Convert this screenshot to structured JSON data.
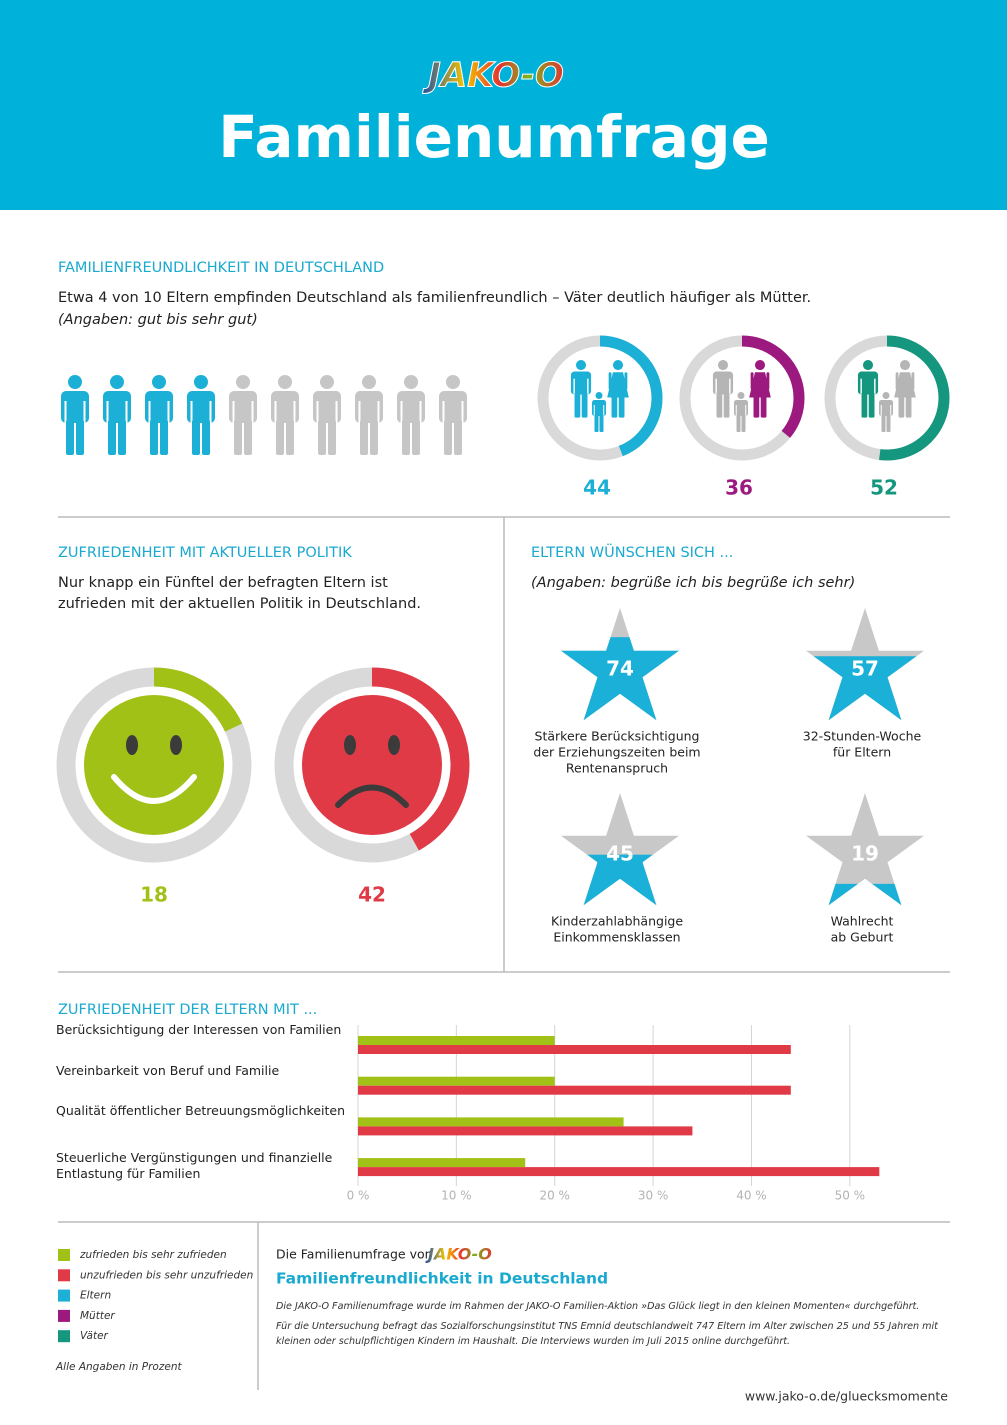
{
  "header": {
    "logo": "JAKO-O",
    "title": "Familienumfrage"
  },
  "chart_data": [
    {
      "type": "donut",
      "title": "FAMILIENFREUNDLICHKEIT IN DEUTSCHLAND",
      "subtitle": "Etwa 4 von 10 Eltern empfinden Deutschland als familienfreundlich – Väter deutlich häufiger als Mütter.",
      "note": "(Angaben: gut bis sehr gut)",
      "categories": [
        "Eltern",
        "Mütter",
        "Väter"
      ],
      "values": [
        44,
        36,
        52
      ],
      "colors": [
        "#1cb0d6",
        "#9c1a7f",
        "#14967f"
      ],
      "track_color": "#d9d9d9"
    },
    {
      "type": "pictogram",
      "value": 4,
      "count": 10,
      "color": "#1cb0d6",
      "track_color": "#c6c6c6"
    },
    {
      "type": "smiley",
      "title": "ZUFRIEDENHEIT MIT AKTUELLER POLITIK",
      "text": [
        "Nur knapp ein Fünftel der befragten Eltern ist",
        "zufrieden mit der aktuellen Politik in Deutschland."
      ],
      "values": [
        18,
        42
      ],
      "colors": [
        "#a2c116",
        "#e03a47"
      ],
      "track_color": "#d9d9d9"
    },
    {
      "type": "stars",
      "title": "ELTERN WÜNSCHEN SICH ...",
      "note": "(Angaben: begrüße ich bis begrüße ich sehr)",
      "values": [
        74,
        57,
        45,
        19
      ],
      "labels": [
        [
          "Stärkere Berücksichtigung",
          "der Erziehungszeiten beim",
          "Rentenanspruch"
        ],
        [
          "32-Stunden-Woche",
          "für Eltern"
        ],
        [
          "Kinderzahlabhängige",
          "Einkommensklassen"
        ],
        [
          "Wahlrecht",
          "ab Geburt"
        ]
      ],
      "color": "#1ab0d8",
      "track_color": "#c8c8c8"
    },
    {
      "type": "hbar",
      "title": "ZUFRIEDENHEIT DER ELTERN MIT ...",
      "categories": [
        "Berücksichtigung der Interessen von Familien",
        "Vereinbarkeit von Beruf und Familie",
        "Qualität öffentlicher Betreuungsmöglichkeiten",
        "Steuerliche Vergünstigungen und finanzielle Entlastung für Familien"
      ],
      "series": [
        {
          "name": "zufrieden bis sehr zufrieden",
          "color": "#a2c116",
          "values": [
            20,
            20,
            27,
            17
          ]
        },
        {
          "name": "unzufrieden bis sehr unzufrieden",
          "color": "#e03a47",
          "values": [
            44,
            44,
            34,
            53
          ]
        }
      ],
      "xlim": [
        0,
        55
      ],
      "xticks": [
        {
          "value": 0,
          "label": "0 %"
        },
        {
          "value": 10,
          "label": "10 %"
        },
        {
          "value": 20,
          "label": "20 %"
        },
        {
          "value": 30,
          "label": "30 %"
        },
        {
          "value": 40,
          "label": "40 %"
        },
        {
          "value": 50,
          "label": "50 %"
        }
      ],
      "grid": true
    }
  ],
  "footer": {
    "note": "Alle Angaben in Prozent",
    "intro": "Die Familienumfrage von",
    "logo": "JAKO-O",
    "heading": "Familienfreundlichkeit in Deutschland",
    "paragraphs": [
      "Die JAKO-O Familienumfrage wurde im Rahmen der JAKO-O Familien-Aktion »Das Glück liegt in den kleinen Momenten« durchgeführt.",
      "Für die Untersuchung befragt das Sozialforschungsinstitut TNS Emnid deutschlandweit 747 Eltern im Alter zwischen 25 und 55 Jahren mit kleinen oder schulpflichtigen Kindern im Haushalt. Die Interviews wurden im Juli 2015 online durchgeführt."
    ],
    "url": "www.jako-o.de/gluecksmomente"
  }
}
